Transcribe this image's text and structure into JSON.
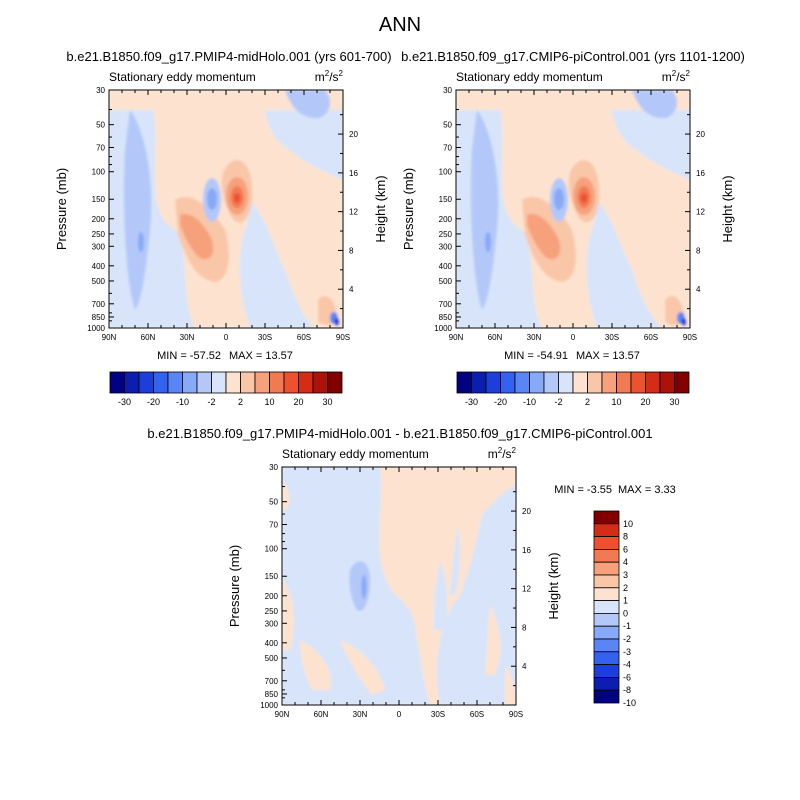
{
  "figure": {
    "title": "ANN"
  },
  "colors": {
    "main_palette": [
      "#000080",
      "#0a1fb0",
      "#1b3fd8",
      "#3362f0",
      "#5a86f5",
      "#87a9f8",
      "#b3c8f9",
      "#d8e4fa",
      "#fde3cf",
      "#fac6a8",
      "#f6a17c",
      "#f27a53",
      "#ec5130",
      "#d42d15",
      "#ad1208",
      "#800000"
    ],
    "diff_palette": [
      "#000080",
      "#0a1fb0",
      "#1b3fd8",
      "#3362f0",
      "#5a86f5",
      "#87a9f8",
      "#b3c8f9",
      "#d8e4fa",
      "#fde3cf",
      "#fac6a8",
      "#f6a17c",
      "#f27a53",
      "#ec5130",
      "#d42d15",
      "#800000"
    ]
  },
  "chart_data": [
    {
      "type": "heatmap",
      "title": "b.e21.B1850.f09_g17.PMIP4-midHolo.001 (yrs 601-700)",
      "subtitle": "Stationary eddy momentum",
      "units": "m²/s²",
      "variable": "Stationary eddy momentum",
      "xlabel": "",
      "ylabel": "Pressure (mb)",
      "y2label": "Height (km)",
      "x_ticks": [
        "90N",
        "60N",
        "30N",
        "0",
        "30S",
        "60S",
        "90S"
      ],
      "y_ticks": [
        30,
        50,
        70,
        100,
        150,
        200,
        250,
        300,
        400,
        500,
        700,
        850,
        1000
      ],
      "y2_ticks": [
        4,
        8,
        12,
        16,
        20
      ],
      "y_scale": "log",
      "min_label": "MIN = -57.52",
      "max_label": "MAX =  13.57",
      "colorbar_labels": [
        "-30",
        "-20",
        "-10",
        "-2",
        "2",
        "10",
        "20",
        "30"
      ],
      "features": [
        {
          "lat": -8,
          "p": 150,
          "value": 13.57,
          "note": "positive maximum"
        },
        {
          "lat": 13,
          "p": 150,
          "value": -12,
          "note": "negative core"
        },
        {
          "lat": 35,
          "p": 270,
          "value": 6,
          "note": "positive lobe"
        },
        {
          "lat": 64,
          "p": 230,
          "value": -4
        },
        {
          "lat": -78,
          "p": 940,
          "value": -57.52,
          "note": "near-surface minimum"
        }
      ]
    },
    {
      "type": "heatmap",
      "title": "b.e21.B1850.f09_g17.CMIP6-piControl.001 (yrs 1101-1200)",
      "subtitle": "Stationary eddy momentum",
      "units": "m²/s²",
      "variable": "Stationary eddy momentum",
      "xlabel": "",
      "ylabel": "Pressure (mb)",
      "y2label": "Height (km)",
      "x_ticks": [
        "90N",
        "60N",
        "30N",
        "0",
        "30S",
        "60S",
        "90S"
      ],
      "y_ticks": [
        30,
        50,
        70,
        100,
        150,
        200,
        250,
        300,
        400,
        500,
        700,
        850,
        1000
      ],
      "y2_ticks": [
        4,
        8,
        12,
        16,
        20
      ],
      "y_scale": "log",
      "min_label": "MIN = -54.91",
      "max_label": "MAX =  13.57",
      "colorbar_labels": [
        "-30",
        "-20",
        "-10",
        "-2",
        "2",
        "10",
        "20",
        "30"
      ],
      "features": [
        {
          "lat": -8,
          "p": 150,
          "value": 13.57,
          "note": "positive maximum"
        },
        {
          "lat": 13,
          "p": 150,
          "value": -12,
          "note": "negative core"
        },
        {
          "lat": 35,
          "p": 270,
          "value": 6,
          "note": "positive lobe"
        },
        {
          "lat": 64,
          "p": 230,
          "value": -4
        },
        {
          "lat": -78,
          "p": 940,
          "value": -54.91,
          "note": "near-surface minimum"
        }
      ]
    },
    {
      "type": "heatmap",
      "title": "b.e21.B1850.f09_g17.PMIP4-midHolo.001 - b.e21.B1850.f09_g17.CMIP6-piControl.001",
      "subtitle": "Stationary eddy momentum",
      "units": "m²/s²",
      "variable": "Stationary eddy momentum (difference)",
      "xlabel": "",
      "ylabel": "Pressure (mb)",
      "y2label": "Height (km)",
      "x_ticks": [
        "90N",
        "60N",
        "30N",
        "0",
        "30S",
        "60S",
        "90S"
      ],
      "y_ticks": [
        30,
        50,
        70,
        100,
        150,
        200,
        250,
        300,
        400,
        500,
        700,
        850,
        1000
      ],
      "y2_ticks": [
        4,
        8,
        12,
        16,
        20
      ],
      "y_scale": "log",
      "min_label": "MIN =  -3.55",
      "max_label": "MAX =   3.33",
      "colorbar_labels": [
        "10",
        "8",
        "6",
        "4",
        "3",
        "2",
        "1",
        "0",
        "-1",
        "-2",
        "-3",
        "-4",
        "-6",
        "-8",
        "-10"
      ],
      "features": [
        {
          "lat": 30,
          "p": 190,
          "value": -3.55,
          "note": "negative minimum"
        },
        {
          "lat": 30,
          "p": 220,
          "value": -1.5
        },
        {
          "lat": -70,
          "p": 70,
          "value": 0.8,
          "note": "positive region"
        },
        {
          "lat": 60,
          "p": 500,
          "value": -0.5
        }
      ]
    }
  ]
}
